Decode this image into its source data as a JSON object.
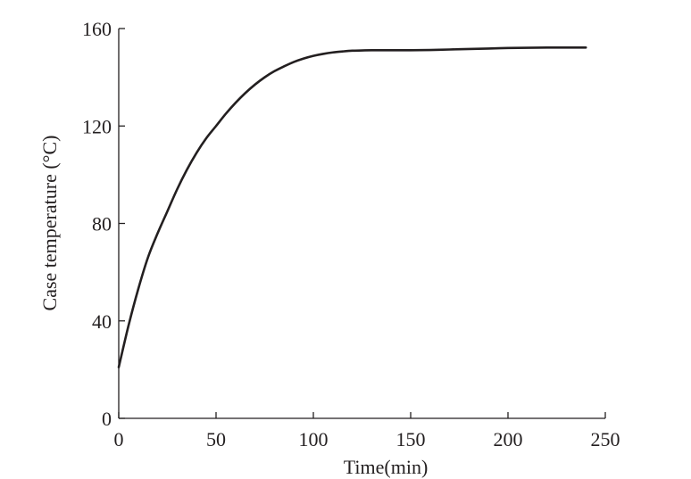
{
  "chart_data": {
    "type": "line",
    "title": "",
    "xlabel": "Time(min)",
    "ylabel": "Case temperature (°C)",
    "xlim": [
      0,
      250
    ],
    "ylim": [
      0,
      160
    ],
    "xticks": [
      0,
      50,
      100,
      150,
      200,
      250
    ],
    "yticks": [
      0,
      40,
      80,
      120,
      160
    ],
    "grid": false,
    "legend": "none",
    "series": [
      {
        "color": "#231f20",
        "x": [
          0,
          5,
          10,
          15,
          20,
          25,
          30,
          35,
          40,
          45,
          50,
          55,
          60,
          65,
          70,
          75,
          80,
          85,
          90,
          95,
          100,
          105,
          110,
          115,
          120,
          125,
          130,
          140,
          150,
          160,
          170,
          180,
          190,
          200,
          210,
          220,
          230,
          240
        ],
        "y": [
          21,
          38,
          53,
          66,
          76,
          85,
          94,
          102,
          109,
          115,
          120,
          125,
          129.5,
          133.5,
          137,
          140,
          142.5,
          144.5,
          146.3,
          147.7,
          148.8,
          149.6,
          150.2,
          150.6,
          150.9,
          151,
          151.1,
          151.1,
          151.1,
          151.2,
          151.4,
          151.6,
          151.8,
          152,
          152.1,
          152.2,
          152.2,
          152.2
        ]
      }
    ]
  }
}
